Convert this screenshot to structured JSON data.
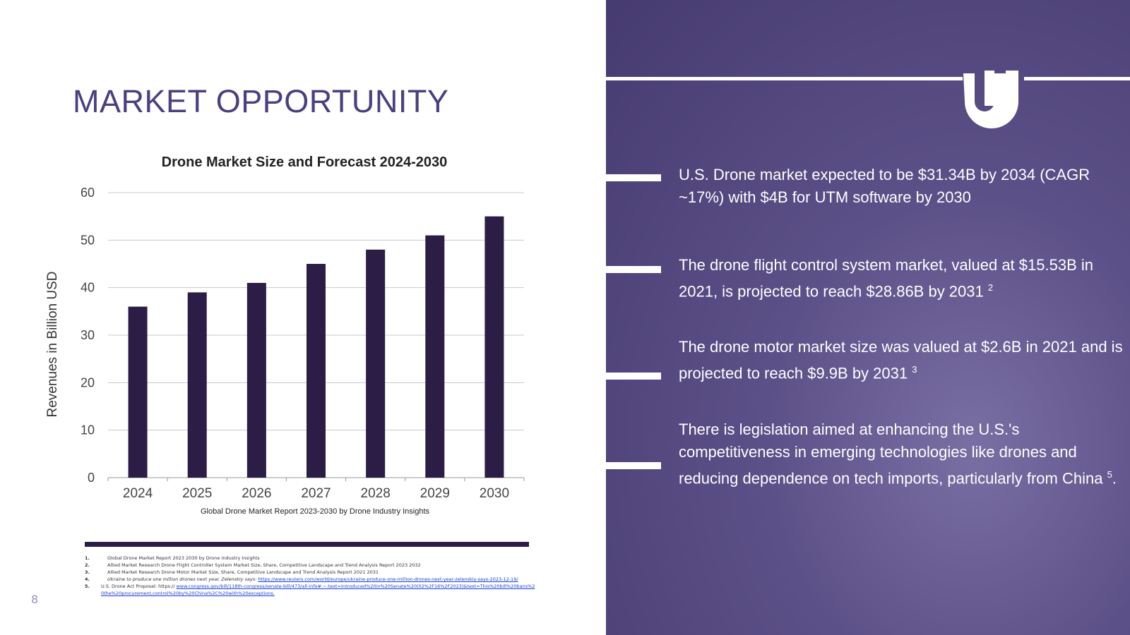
{
  "title": "MARKET OPPORTUNITY",
  "chart_data": {
    "type": "bar",
    "title": "Drone Market Size and Forecast 2024-2030",
    "y_label": "Revenues in Billion USD",
    "source": "Global Drone Market Report 2023-2030 by Drone Industry Insights",
    "categories": [
      "2024",
      "2025",
      "2026",
      "2027",
      "2028",
      "2029",
      "2030"
    ],
    "values": [
      36,
      39,
      41,
      45,
      48,
      51,
      55
    ],
    "color": "#2b1d45",
    "ylim": [
      0,
      60
    ],
    "yticks": [
      0,
      10,
      20,
      30,
      40,
      50,
      60
    ],
    "grid": true
  },
  "footnotes": [
    {
      "number": "1.",
      "text": "Global Drone Market Report 2023 2030 by Drone Industry Insights"
    },
    {
      "number": "2.",
      "text": "Allied Market Research Drone Flight Controller System Market Size, Share, Competitive Landscape and Trend Analysis Report 2023 2032"
    },
    {
      "number": "3.",
      "text": "Allied Market Research Drone Motor Market Size, Share, Competitive Landscape and Trend Analysis Report 2021 2031"
    },
    {
      "number": "4.",
      "text": "Ukraine to produce one million drones next year, Zelenskiy says:",
      "link": "https://www.reuters.com/world/europe/ukraine-produce-one-million-drones-next-year-zelenskiy-says-2023-12-19/"
    },
    {
      "number": "5.",
      "text": "U.S. Drone Act Proposal: https://",
      "link": "www.congress.gov/bill/118th-congress/senate-bill/473/all-info#:~:text=Introduced%20in%20Senate%20(02%2F16%2F2023)&text=This%20bill%20bans%20the%20procurement,control%20by%20China%2C%20with%20exceptions."
    }
  ],
  "page_number": "8",
  "bullets": [
    {
      "text": "U.S. Drone market expected to be $31.34B by 2034 (CAGR ~17%) with $4B for UTM software by 2030"
    },
    {
      "text": "The drone flight control system market, valued at $15.53B in 2021, is projected to reach $28.86B by 2031",
      "note": "2"
    },
    {
      "text": "The drone motor market size was valued at $2.6B in 2021 and is projected to reach $9.9B by 2031",
      "note": "3"
    },
    {
      "text": "There is legislation aimed at enhancing the U.S.'s competitiveness in emerging technologies like drones and reducing dependence on tech imports, particularly from China",
      "note": "5",
      "tail": "."
    }
  ]
}
